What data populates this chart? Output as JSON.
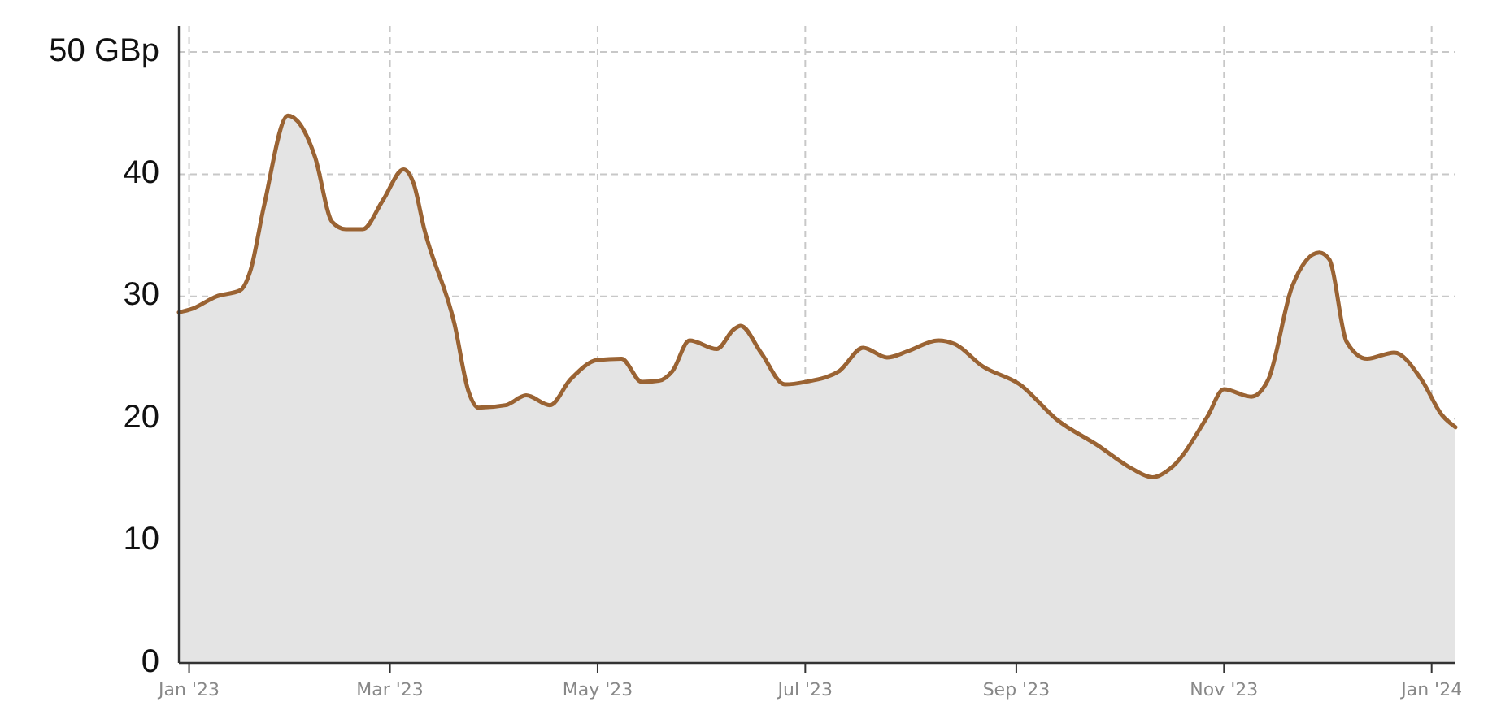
{
  "chart_data": {
    "type": "area",
    "x": [
      "2022-12-29",
      "2023-01-02",
      "2023-01-09",
      "2023-01-16",
      "2023-01-19",
      "2023-01-23",
      "2023-01-30",
      "2023-02-02",
      "2023-02-07",
      "2023-02-12",
      "2023-02-16",
      "2023-02-21",
      "2023-02-27",
      "2023-03-05",
      "2023-03-08",
      "2023-03-11",
      "2023-03-20",
      "2023-03-24",
      "2023-03-27",
      "2023-04-04",
      "2023-04-10",
      "2023-04-17",
      "2023-04-23",
      "2023-05-01",
      "2023-05-08",
      "2023-05-14",
      "2023-05-19",
      "2023-05-23",
      "2023-05-28",
      "2023-06-05",
      "2023-06-10",
      "2023-06-12",
      "2023-06-18",
      "2023-06-25",
      "2023-07-01",
      "2023-07-11",
      "2023-07-18",
      "2023-07-25",
      "2023-07-31",
      "2023-08-09",
      "2023-08-14",
      "2023-08-22",
      "2023-09-02",
      "2023-09-13",
      "2023-09-25",
      "2023-10-05",
      "2023-10-11",
      "2023-10-17",
      "2023-10-27",
      "2023-11-01",
      "2023-11-09",
      "2023-11-14",
      "2023-11-21",
      "2023-11-29",
      "2023-12-02",
      "2023-12-07",
      "2023-12-13",
      "2023-12-21",
      "2023-12-29",
      "2024-01-04",
      "2024-01-08"
    ],
    "series": [
      {
        "color": "#9a6333",
        "values": [
          28.7,
          29.0,
          30.0,
          30.5,
          32.1,
          37.4,
          44.8,
          44.3,
          41.4,
          36.1,
          35.5,
          35.5,
          37.9,
          40.4,
          39.2,
          35.6,
          27.7,
          22.3,
          20.9,
          21.1,
          21.9,
          21.1,
          23.2,
          24.8,
          24.9,
          23.0,
          23.1,
          23.9,
          26.4,
          25.7,
          27.3,
          27.6,
          25.4,
          22.8,
          23.0,
          23.9,
          25.8,
          25.0,
          25.5,
          26.4,
          26.1,
          24.3,
          22.8,
          19.9,
          17.8,
          15.9,
          15.2,
          16.1,
          20.1,
          22.4,
          21.8,
          23.2,
          30.8,
          33.6,
          33.0,
          26.3,
          24.9,
          25.4,
          23.2,
          20.3,
          19.3
        ]
      }
    ],
    "xlim": [
      "2022-12-29",
      "2024-01-08"
    ],
    "xticks": [
      {
        "value": "2023-01-01",
        "label": "Jan '23"
      },
      {
        "value": "2023-03-01",
        "label": "Mar '23"
      },
      {
        "value": "2023-05-01",
        "label": "May '23"
      },
      {
        "value": "2023-07-01",
        "label": "Jul '23"
      },
      {
        "value": "2023-09-01",
        "label": "Sep '23"
      },
      {
        "value": "2023-11-01",
        "label": "Nov '23"
      },
      {
        "value": "2024-01-01",
        "label": "Jan '24"
      }
    ],
    "ylim": [
      0,
      50
    ],
    "yticks": [
      0,
      10,
      20,
      30,
      40,
      {
        "value": 50,
        "label": "50 GBp"
      }
    ],
    "grid": true,
    "line_style": "solid"
  }
}
